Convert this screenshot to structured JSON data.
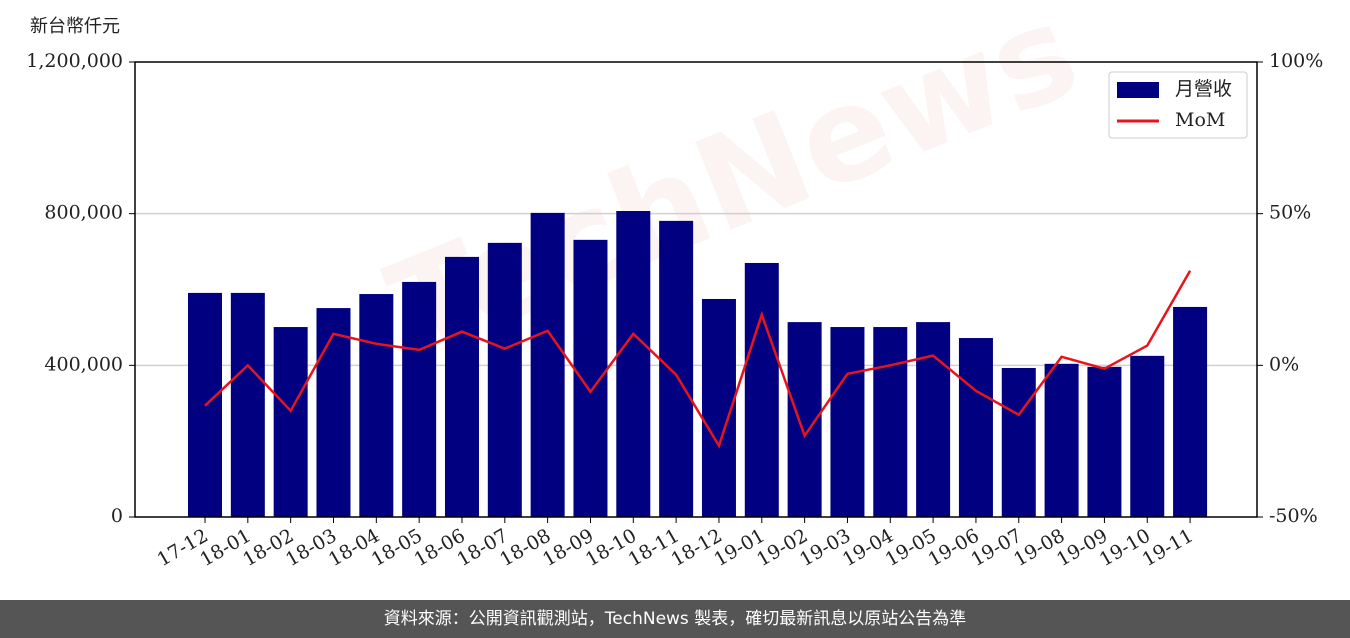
{
  "chart_data": {
    "type": "bar_line",
    "y_label": "新台幣仟元",
    "watermark": "TechNews",
    "footer": "資料來源：公開資訊觀測站，TechNews 製表，確切最新訊息以原站公告為準",
    "categories": [
      "17-12",
      "18-01",
      "18-02",
      "18-03",
      "18-04",
      "18-05",
      "18-06",
      "18-07",
      "18-08",
      "18-09",
      "18-10",
      "18-11",
      "18-12",
      "19-01",
      "19-02",
      "19-03",
      "19-04",
      "19-05",
      "19-06",
      "19-07",
      "19-08",
      "19-09",
      "19-10",
      "19-11"
    ],
    "series": [
      {
        "name": "月營收",
        "color": "#000080",
        "type": "bar",
        "values": [
          591000,
          591000,
          501000,
          551000,
          588000,
          620000,
          686000,
          723000,
          802000,
          731000,
          807000,
          781000,
          575000,
          670000,
          514000,
          501000,
          501000,
          514000,
          472000,
          393000,
          404000,
          396000,
          425000,
          554000
        ]
      },
      {
        "name": "MoM",
        "color": "#e8141c",
        "type": "line",
        "axis": "y2",
        "values": [
          -13.3,
          0,
          -15,
          10.4,
          7.1,
          5.1,
          11.1,
          5.5,
          11.4,
          -8.7,
          10.4,
          -3.1,
          -26.5,
          16.7,
          -23.2,
          -2.8,
          0,
          3.2,
          -8.4,
          -16.3,
          2.8,
          -1.1,
          6.5,
          31.2
        ]
      }
    ],
    "ylim": [
      0,
      1200000
    ],
    "yticks": [
      0,
      {
        "value": 400000,
        "label": "400,000"
      },
      {
        "value": 800000,
        "label": "800,000"
      },
      {
        "value": 1200000,
        "label": "1,200,000"
      }
    ],
    "y2lim": [
      -50,
      100
    ],
    "y2ticks": [
      {
        "value": -50,
        "label": "-50%"
      },
      {
        "value": 0,
        "label": "0%"
      },
      {
        "value": 50,
        "label": "50%"
      },
      {
        "value": 100,
        "label": "100%"
      }
    ],
    "grid": true,
    "legend": "upper right"
  }
}
